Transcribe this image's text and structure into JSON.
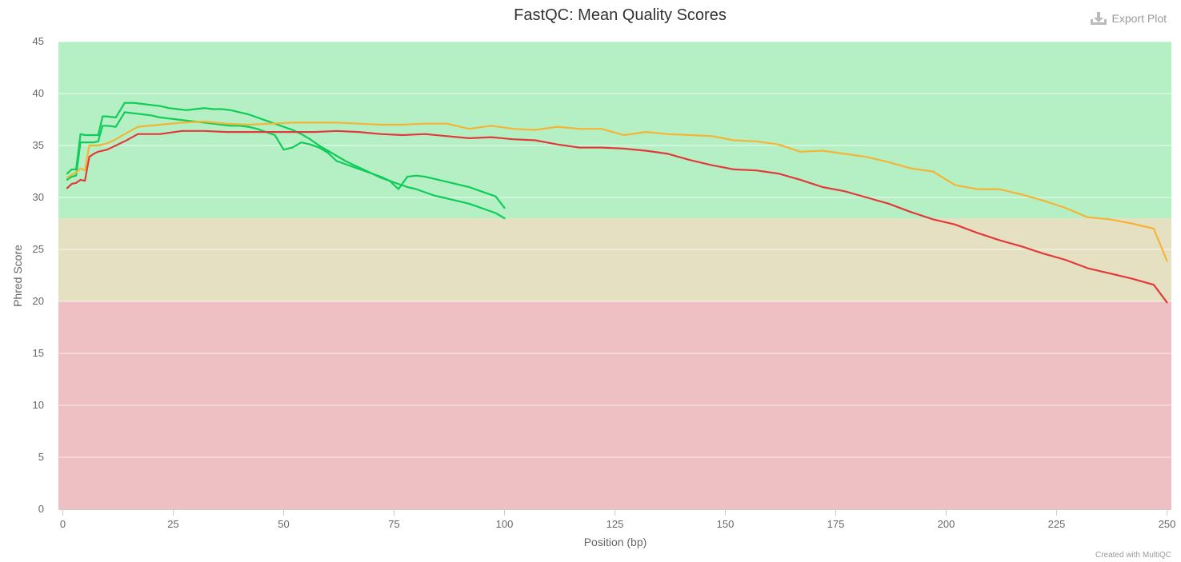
{
  "toolbar": {
    "export_label": "Export Plot",
    "export_icon": "download-icon"
  },
  "credit": "Created with MultiQC",
  "colors": {
    "zone_good": "#b5f0c5",
    "zone_warn": "#e6e0c3",
    "zone_fail": "#eec0c3",
    "grid": "#ffffff",
    "axis": "#cccccc"
  },
  "chart_data": {
    "type": "line",
    "title": "FastQC: Mean Quality Scores",
    "xlabel": "Position (bp)",
    "ylabel": "Phred Score",
    "xlim": [
      -1,
      251
    ],
    "ylim": [
      0,
      45
    ],
    "xticks": [
      0,
      25,
      50,
      75,
      100,
      125,
      150,
      175,
      200,
      225,
      250
    ],
    "yticks": [
      0,
      5,
      10,
      15,
      20,
      25,
      30,
      35,
      40,
      45
    ],
    "grid": true,
    "bands": [
      {
        "from": 28,
        "to": 45,
        "color": "#b5f0c5"
      },
      {
        "from": 20,
        "to": 28,
        "color": "#e6e0c3"
      },
      {
        "from": 0,
        "to": 20,
        "color": "#eec0c3"
      }
    ],
    "series": [
      {
        "color": "#5cb85c",
        "x": [
          1,
          2,
          3,
          4,
          5,
          6,
          7,
          8,
          9,
          10,
          12,
          14,
          16,
          18,
          20,
          22,
          24,
          26,
          28,
          30,
          32,
          34,
          36,
          38,
          40,
          42,
          44,
          46,
          48,
          50,
          52,
          54,
          56,
          58,
          60,
          62,
          64,
          66,
          68,
          70,
          72,
          74,
          76,
          78,
          80,
          82,
          84,
          86,
          88,
          90,
          92,
          94,
          96,
          98,
          100
        ],
        "y": [
          31.7,
          32.0,
          32.1,
          35.3,
          35.3,
          35.3,
          35.3,
          35.4,
          36.9,
          36.9,
          36.8,
          38.2,
          38.1,
          38.0,
          37.9,
          37.7,
          37.6,
          37.5,
          37.4,
          37.3,
          37.2,
          37.1,
          37.0,
          36.9,
          36.9,
          36.8,
          36.6,
          36.3,
          36.0,
          34.6,
          34.8,
          35.3,
          35.1,
          34.8,
          34.3,
          33.5,
          33.2,
          32.9,
          32.6,
          32.3,
          32.0,
          31.6,
          30.8,
          32.0,
          32.1,
          32.0,
          31.8,
          31.6,
          31.4,
          31.2,
          31.0,
          30.7,
          30.4,
          30.1,
          29.0
        ]
      },
      {
        "color": "#5cb85c",
        "x": [
          1,
          2,
          3,
          4,
          5,
          6,
          7,
          8,
          9,
          10,
          12,
          14,
          16,
          18,
          20,
          22,
          24,
          26,
          28,
          30,
          32,
          34,
          36,
          38,
          40,
          42,
          44,
          46,
          48,
          50,
          52,
          54,
          56,
          58,
          60,
          62,
          64,
          66,
          68,
          70,
          72,
          74,
          76,
          78,
          80,
          82,
          84,
          86,
          88,
          90,
          92,
          94,
          96,
          98,
          100
        ],
        "y": [
          32.3,
          32.7,
          32.7,
          36.1,
          36.0,
          36.0,
          36.0,
          36.0,
          37.8,
          37.8,
          37.7,
          39.1,
          39.1,
          39.0,
          38.9,
          38.8,
          38.6,
          38.5,
          38.4,
          38.5,
          38.6,
          38.5,
          38.5,
          38.4,
          38.2,
          38.0,
          37.7,
          37.4,
          37.1,
          36.8,
          36.5,
          36.1,
          35.6,
          35.0,
          34.5,
          34.0,
          33.5,
          33.1,
          32.7,
          32.3,
          31.9,
          31.6,
          31.3,
          31.0,
          30.8,
          30.5,
          30.2,
          30.0,
          29.8,
          29.6,
          29.4,
          29.1,
          28.8,
          28.5,
          28.0
        ]
      },
      {
        "color": "#f0ad4e",
        "x": [
          1,
          2,
          3,
          4,
          5,
          6,
          7,
          8,
          9,
          10,
          12,
          14,
          17,
          22,
          27,
          32,
          37,
          42,
          47,
          52,
          57,
          62,
          67,
          72,
          77,
          82,
          87,
          92,
          97,
          102,
          107,
          112,
          117,
          122,
          127,
          132,
          137,
          142,
          147,
          152,
          157,
          162,
          167,
          172,
          177,
          182,
          187,
          192,
          197,
          202,
          207,
          212,
          217,
          222,
          227,
          232,
          237,
          242,
          247,
          250
        ],
        "y": [
          31.9,
          32.2,
          32.4,
          32.8,
          32.6,
          35.0,
          35.0,
          35.0,
          35.1,
          35.2,
          35.6,
          36.1,
          36.8,
          37.0,
          37.2,
          37.3,
          37.1,
          37.0,
          37.1,
          37.2,
          37.2,
          37.2,
          37.1,
          37.0,
          37.0,
          37.1,
          37.1,
          36.6,
          36.9,
          36.6,
          36.5,
          36.8,
          36.6,
          36.6,
          36.0,
          36.3,
          36.1,
          36.0,
          35.9,
          35.5,
          35.4,
          35.1,
          34.4,
          34.5,
          34.2,
          33.9,
          33.4,
          32.8,
          32.5,
          31.2,
          30.8,
          30.8,
          30.3,
          29.7,
          29.0,
          28.1,
          27.9,
          27.5,
          27.0,
          23.9
        ]
      },
      {
        "color": "#d9534f",
        "x": [
          1,
          2,
          3,
          4,
          5,
          6,
          7,
          8,
          9,
          10,
          12,
          14,
          17,
          22,
          27,
          32,
          37,
          42,
          47,
          52,
          57,
          62,
          67,
          72,
          77,
          82,
          87,
          92,
          97,
          102,
          107,
          112,
          117,
          122,
          127,
          132,
          137,
          142,
          147,
          152,
          157,
          162,
          167,
          172,
          177,
          182,
          187,
          192,
          197,
          202,
          207,
          212,
          217,
          222,
          227,
          232,
          237,
          242,
          247,
          250
        ],
        "y": [
          30.9,
          31.3,
          31.4,
          31.7,
          31.6,
          33.9,
          34.2,
          34.4,
          34.5,
          34.6,
          35.0,
          35.4,
          36.1,
          36.1,
          36.4,
          36.4,
          36.3,
          36.3,
          36.3,
          36.3,
          36.3,
          36.4,
          36.3,
          36.1,
          36.0,
          36.1,
          35.9,
          35.7,
          35.8,
          35.6,
          35.5,
          35.1,
          34.8,
          34.8,
          34.7,
          34.5,
          34.2,
          33.6,
          33.1,
          32.7,
          32.6,
          32.3,
          31.7,
          31.0,
          30.6,
          30.0,
          29.4,
          28.6,
          27.9,
          27.4,
          26.6,
          25.9,
          25.3,
          24.6,
          24.0,
          23.2,
          22.7,
          22.2,
          21.6,
          19.9
        ]
      }
    ]
  }
}
